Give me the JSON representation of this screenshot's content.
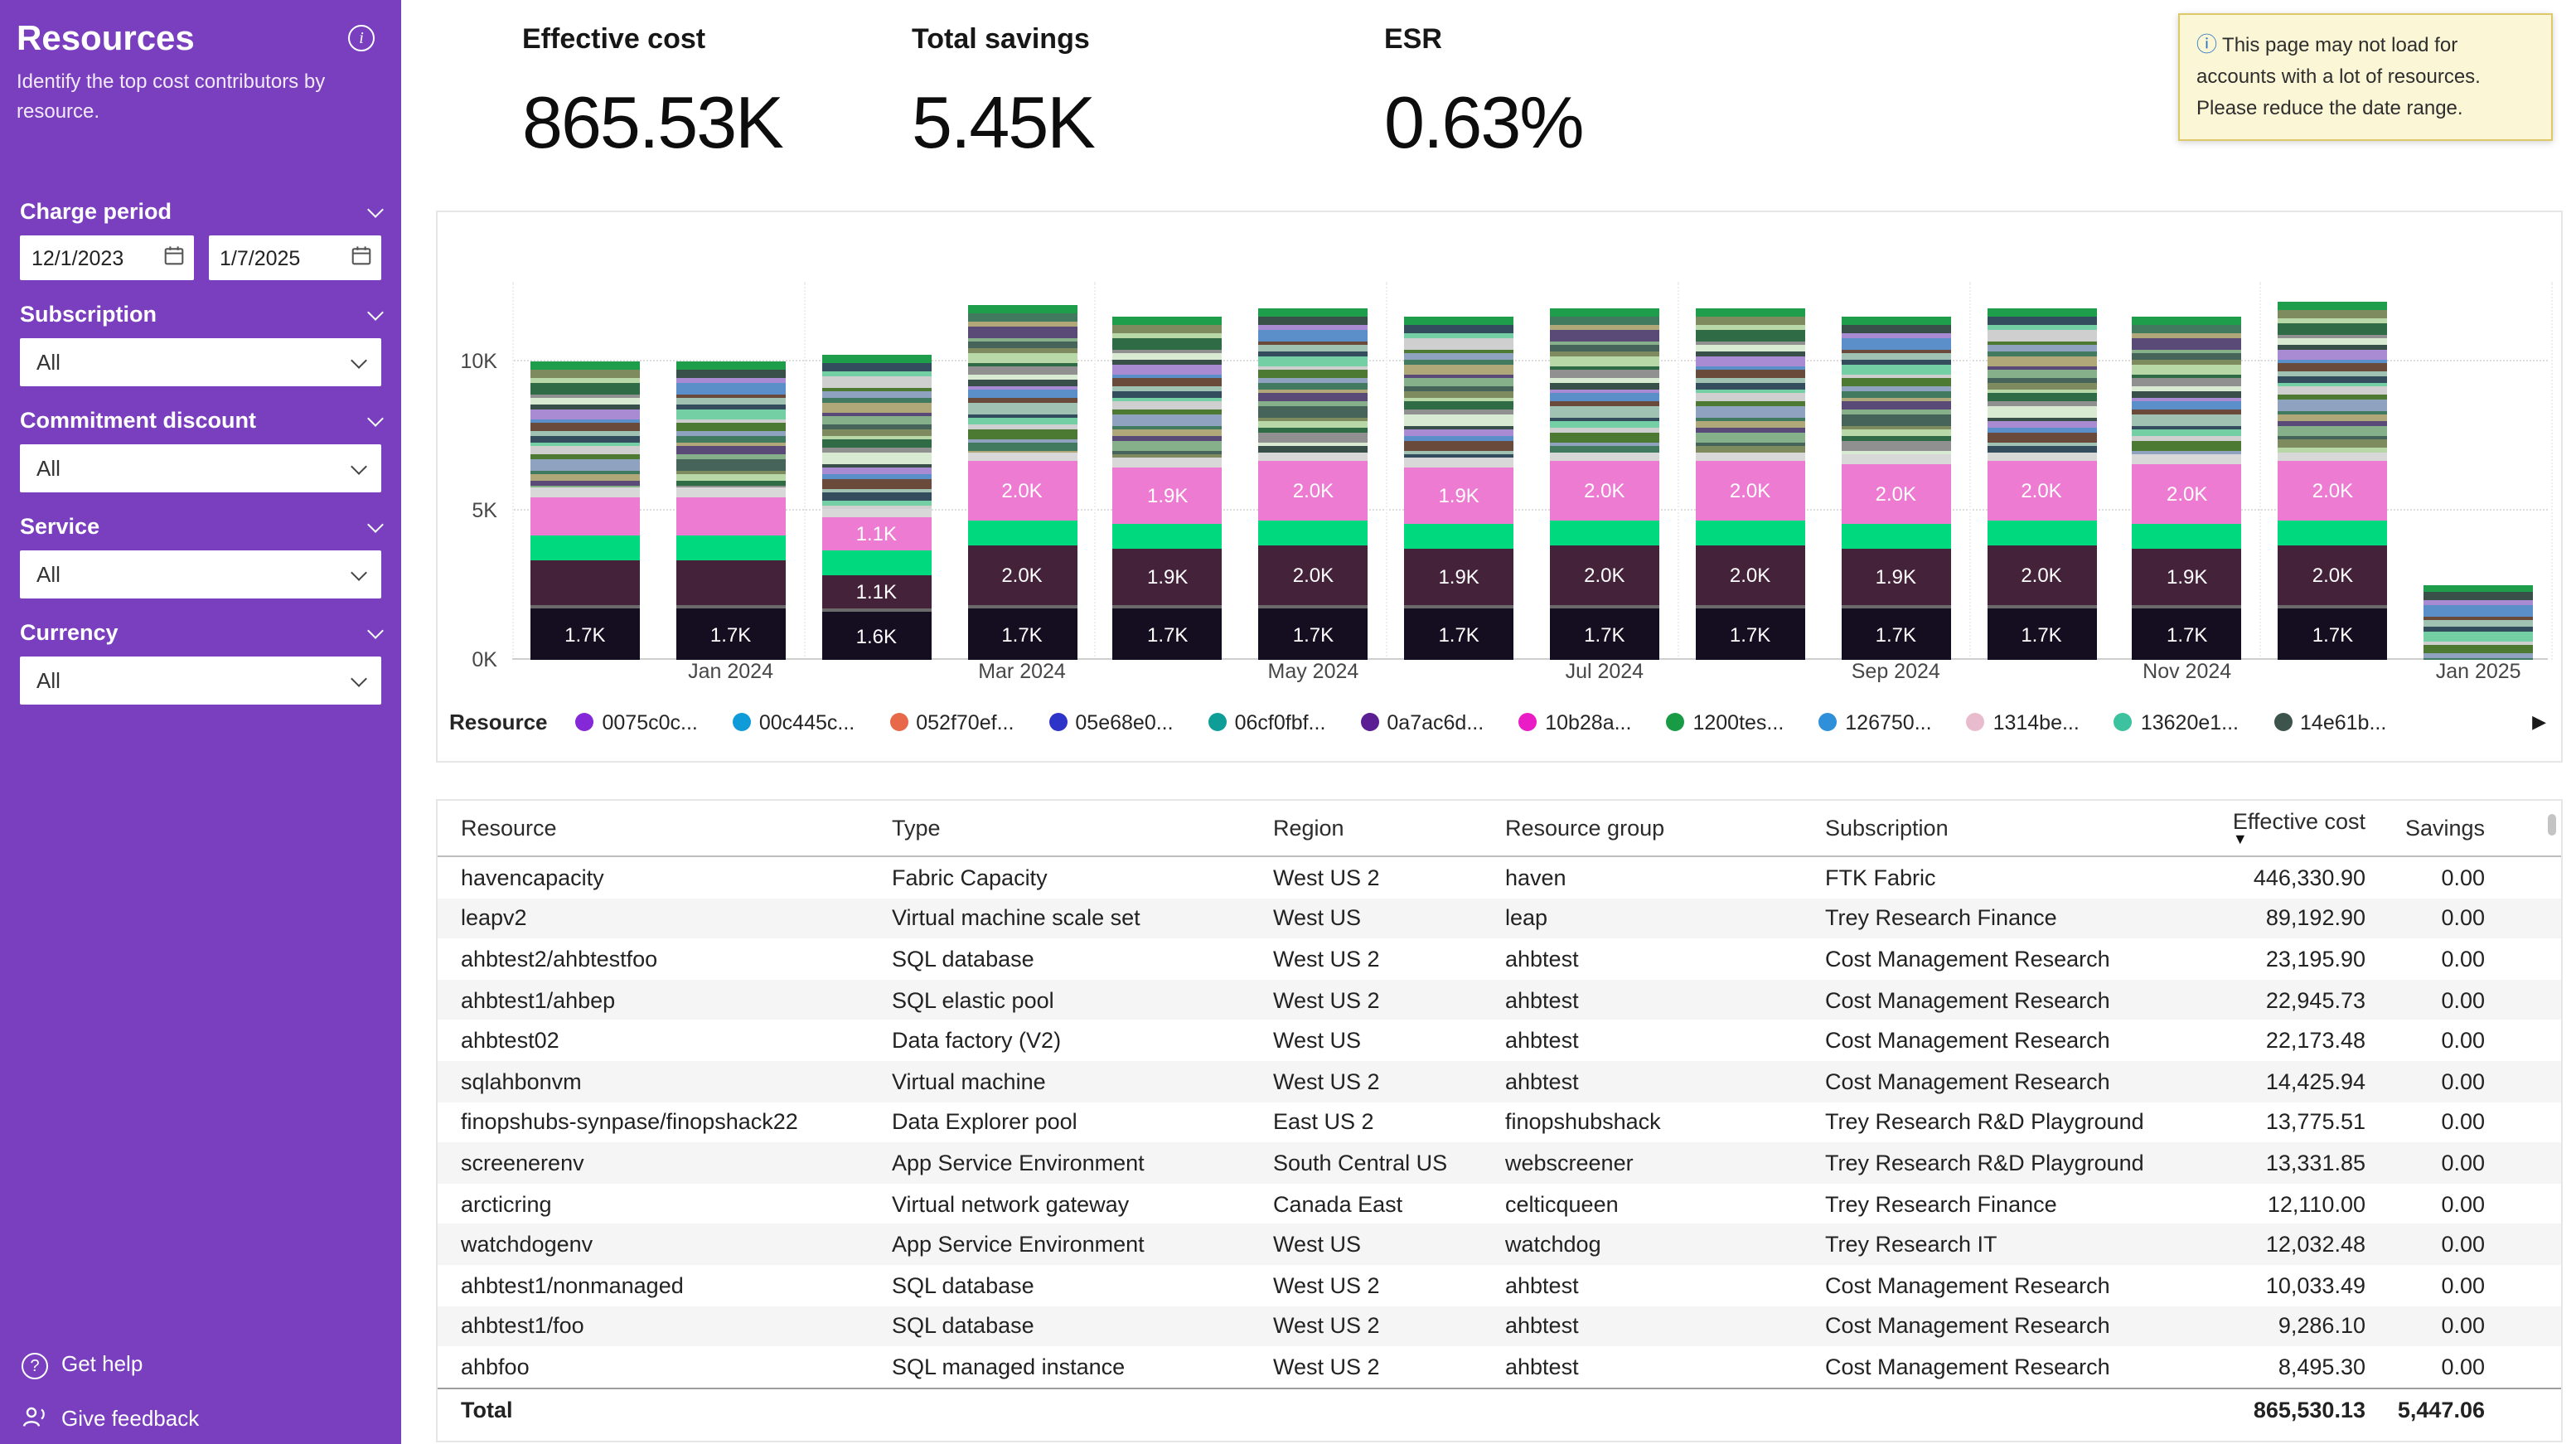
{
  "sidebar": {
    "title": "Resources",
    "subtitle": "Identify the top cost contributors by resource.",
    "filters": [
      {
        "label": "Charge period",
        "type": "dates",
        "values": [
          "12/1/2023",
          "1/7/2025"
        ]
      },
      {
        "label": "Subscription",
        "type": "select",
        "value": "All"
      },
      {
        "label": "Commitment discount",
        "type": "select",
        "value": "All"
      },
      {
        "label": "Service",
        "type": "select",
        "value": "All"
      },
      {
        "label": "Currency",
        "type": "select",
        "value": "All"
      }
    ],
    "footer": [
      {
        "label": "Get help"
      },
      {
        "label": "Give feedback"
      }
    ]
  },
  "kpis": [
    {
      "label": "Effective cost",
      "value": "865.53K"
    },
    {
      "label": "Total savings",
      "value": "5.45K"
    },
    {
      "label": "ESR",
      "value": "0.63%"
    }
  ],
  "warning": {
    "text": "This page may not load for accounts with a lot of resources. Please reduce the date range."
  },
  "chart_data": {
    "type": "bar",
    "stacked": true,
    "title": "",
    "xlabel": "",
    "ylabel": "",
    "ylim_k": [
      0,
      12.5
    ],
    "y_ticks": [
      "0K",
      "5K",
      "10K"
    ],
    "x_tick_labels": [
      "Jan 2024",
      "Mar 2024",
      "May 2024",
      "Jul 2024",
      "Sep 2024",
      "Nov 2024",
      "Jan 2025"
    ],
    "legend_label": "Resource",
    "legend_next": "▶",
    "legend_items": [
      {
        "name": "0075c0c...",
        "color": "#8428d8"
      },
      {
        "name": "00c445c...",
        "color": "#0f9bd8"
      },
      {
        "name": "052f70ef...",
        "color": "#e8684a"
      },
      {
        "name": "05e68e0...",
        "color": "#2f34c8"
      },
      {
        "name": "06cf0fbf...",
        "color": "#0e9e97"
      },
      {
        "name": "0a7ac6d...",
        "color": "#5c1f93"
      },
      {
        "name": "10b28a...",
        "color": "#ea1cc6"
      },
      {
        "name": "1200tes...",
        "color": "#199b45"
      },
      {
        "name": "126750...",
        "color": "#2f8fd8"
      },
      {
        "name": "1314be...",
        "color": "#e9bccd"
      },
      {
        "name": "13620e1...",
        "color": "#3cc29e"
      },
      {
        "name": "14e61b...",
        "color": "#3c544b"
      }
    ],
    "segment_colors": {
      "base": "#150d20",
      "sep": "#6a6a6a",
      "maroon": "#44223a",
      "green": "#00d97e",
      "pink": "#ee7bd2",
      "gray": "#d8d8d8",
      "cap": "#1e9e4a"
    },
    "stripe_palette": [
      "#7d8b5f",
      "#b9d8a8",
      "#2f6b45",
      "#909090",
      "#d9ead3",
      "#39504a",
      "#a98bd4",
      "#5b8fc9",
      "#6a4a3a",
      "#9fc2b2",
      "#334d5e",
      "#74cfa5",
      "#cfcfcf",
      "#4d7a33",
      "#8fa3c0",
      "#417a5f",
      "#b0a878",
      "#5a4a78",
      "#86b08a",
      "#47645a"
    ],
    "bars": [
      {
        "month": "Dec 2023",
        "total_k": 10.0,
        "segments": [
          {
            "c": "base",
            "v": 1.7,
            "t": "1.7K"
          },
          {
            "c": "sep",
            "v": 0.12
          },
          {
            "c": "maroon",
            "v": 1.5
          },
          {
            "c": "green",
            "v": 0.85
          },
          {
            "c": "pink",
            "v": 1.3
          },
          {
            "c": "gray",
            "v": 0.3
          },
          {
            "c": "stripes",
            "v": 3.95
          },
          {
            "c": "cap",
            "v": 0.28
          }
        ]
      },
      {
        "month": "Jan 2024",
        "total_k": 10.0,
        "segments": [
          {
            "c": "base",
            "v": 1.7,
            "t": "1.7K"
          },
          {
            "c": "sep",
            "v": 0.12
          },
          {
            "c": "maroon",
            "v": 1.5
          },
          {
            "c": "green",
            "v": 0.85
          },
          {
            "c": "pink",
            "v": 1.3
          },
          {
            "c": "gray",
            "v": 0.3
          },
          {
            "c": "stripes",
            "v": 3.95
          },
          {
            "c": "cap",
            "v": 0.28
          }
        ]
      },
      {
        "month": "Feb 2024",
        "total_k": 10.2,
        "segments": [
          {
            "c": "base",
            "v": 1.6,
            "t": "1.6K"
          },
          {
            "c": "sep",
            "v": 0.12
          },
          {
            "c": "maroon",
            "v": 1.1,
            "t": "1.1K"
          },
          {
            "c": "green",
            "v": 0.85
          },
          {
            "c": "pink",
            "v": 1.1,
            "t": "1.1K"
          },
          {
            "c": "gray",
            "v": 0.3
          },
          {
            "c": "stripes",
            "v": 4.85
          },
          {
            "c": "cap",
            "v": 0.28
          }
        ]
      },
      {
        "month": "Mar 2024",
        "total_k": 11.9,
        "segments": [
          {
            "c": "base",
            "v": 1.7,
            "t": "1.7K"
          },
          {
            "c": "sep",
            "v": 0.12
          },
          {
            "c": "maroon",
            "v": 2.0,
            "t": "2.0K"
          },
          {
            "c": "green",
            "v": 0.85
          },
          {
            "c": "pink",
            "v": 2.0,
            "t": "2.0K"
          },
          {
            "c": "gray",
            "v": 0.3
          },
          {
            "c": "stripes",
            "v": 4.65
          },
          {
            "c": "cap",
            "v": 0.28
          }
        ]
      },
      {
        "month": "Apr 2024",
        "total_k": 11.5,
        "segments": [
          {
            "c": "base",
            "v": 1.7,
            "t": "1.7K"
          },
          {
            "c": "sep",
            "v": 0.12
          },
          {
            "c": "maroon",
            "v": 1.9,
            "t": "1.9K"
          },
          {
            "c": "green",
            "v": 0.85
          },
          {
            "c": "pink",
            "v": 1.9,
            "t": "1.9K"
          },
          {
            "c": "gray",
            "v": 0.3
          },
          {
            "c": "stripes",
            "v": 4.45
          },
          {
            "c": "cap",
            "v": 0.28
          }
        ]
      },
      {
        "month": "May 2024",
        "total_k": 11.8,
        "segments": [
          {
            "c": "base",
            "v": 1.7,
            "t": "1.7K"
          },
          {
            "c": "sep",
            "v": 0.12
          },
          {
            "c": "maroon",
            "v": 2.0,
            "t": "2.0K"
          },
          {
            "c": "green",
            "v": 0.85
          },
          {
            "c": "pink",
            "v": 2.0,
            "t": "2.0K"
          },
          {
            "c": "gray",
            "v": 0.3
          },
          {
            "c": "stripes",
            "v": 4.55
          },
          {
            "c": "cap",
            "v": 0.28
          }
        ]
      },
      {
        "month": "Jun 2024",
        "total_k": 11.5,
        "segments": [
          {
            "c": "base",
            "v": 1.7,
            "t": "1.7K"
          },
          {
            "c": "sep",
            "v": 0.12
          },
          {
            "c": "maroon",
            "v": 1.9,
            "t": "1.9K"
          },
          {
            "c": "green",
            "v": 0.85
          },
          {
            "c": "pink",
            "v": 1.9,
            "t": "1.9K"
          },
          {
            "c": "gray",
            "v": 0.3
          },
          {
            "c": "stripes",
            "v": 4.45
          },
          {
            "c": "cap",
            "v": 0.28
          }
        ]
      },
      {
        "month": "Jul 2024",
        "total_k": 11.8,
        "segments": [
          {
            "c": "base",
            "v": 1.7,
            "t": "1.7K"
          },
          {
            "c": "sep",
            "v": 0.12
          },
          {
            "c": "maroon",
            "v": 2.0,
            "t": "2.0K"
          },
          {
            "c": "green",
            "v": 0.85
          },
          {
            "c": "pink",
            "v": 2.0,
            "t": "2.0K"
          },
          {
            "c": "gray",
            "v": 0.3
          },
          {
            "c": "stripes",
            "v": 4.55
          },
          {
            "c": "cap",
            "v": 0.28
          }
        ]
      },
      {
        "month": "Aug 2024",
        "total_k": 11.8,
        "segments": [
          {
            "c": "base",
            "v": 1.7,
            "t": "1.7K"
          },
          {
            "c": "sep",
            "v": 0.12
          },
          {
            "c": "maroon",
            "v": 2.0,
            "t": "2.0K"
          },
          {
            "c": "green",
            "v": 0.85
          },
          {
            "c": "pink",
            "v": 2.0,
            "t": "2.0K"
          },
          {
            "c": "gray",
            "v": 0.3
          },
          {
            "c": "stripes",
            "v": 4.55
          },
          {
            "c": "cap",
            "v": 0.28
          }
        ]
      },
      {
        "month": "Sep 2024",
        "total_k": 11.5,
        "segments": [
          {
            "c": "base",
            "v": 1.7,
            "t": "1.7K"
          },
          {
            "c": "sep",
            "v": 0.12
          },
          {
            "c": "maroon",
            "v": 1.9,
            "t": "1.9K"
          },
          {
            "c": "green",
            "v": 0.85
          },
          {
            "c": "pink",
            "v": 2.0,
            "t": "2.0K"
          },
          {
            "c": "gray",
            "v": 0.3
          },
          {
            "c": "stripes",
            "v": 4.35
          },
          {
            "c": "cap",
            "v": 0.28
          }
        ]
      },
      {
        "month": "Oct 2024",
        "total_k": 11.8,
        "segments": [
          {
            "c": "base",
            "v": 1.7,
            "t": "1.7K"
          },
          {
            "c": "sep",
            "v": 0.12
          },
          {
            "c": "maroon",
            "v": 2.0,
            "t": "2.0K"
          },
          {
            "c": "green",
            "v": 0.85
          },
          {
            "c": "pink",
            "v": 2.0,
            "t": "2.0K"
          },
          {
            "c": "gray",
            "v": 0.3
          },
          {
            "c": "stripes",
            "v": 4.55
          },
          {
            "c": "cap",
            "v": 0.28
          }
        ]
      },
      {
        "month": "Nov 2024",
        "total_k": 11.5,
        "segments": [
          {
            "c": "base",
            "v": 1.7,
            "t": "1.7K"
          },
          {
            "c": "sep",
            "v": 0.12
          },
          {
            "c": "maroon",
            "v": 1.9,
            "t": "1.9K"
          },
          {
            "c": "green",
            "v": 0.85
          },
          {
            "c": "pink",
            "v": 2.0,
            "t": "2.0K"
          },
          {
            "c": "gray",
            "v": 0.3
          },
          {
            "c": "stripes",
            "v": 4.35
          },
          {
            "c": "cap",
            "v": 0.28
          }
        ]
      },
      {
        "month": "Dec 2024",
        "total_k": 12.0,
        "segments": [
          {
            "c": "base",
            "v": 1.7,
            "t": "1.7K"
          },
          {
            "c": "sep",
            "v": 0.12
          },
          {
            "c": "maroon",
            "v": 2.0,
            "t": "2.0K"
          },
          {
            "c": "green",
            "v": 0.85
          },
          {
            "c": "pink",
            "v": 2.0,
            "t": "2.0K"
          },
          {
            "c": "gray",
            "v": 0.3
          },
          {
            "c": "stripes",
            "v": 4.75
          },
          {
            "c": "cap",
            "v": 0.28
          }
        ]
      },
      {
        "month": "Jan 2025",
        "total_k": 2.5,
        "segments": [
          {
            "c": "stripes",
            "v": 2.3
          },
          {
            "c": "cap",
            "v": 0.2
          }
        ]
      }
    ]
  },
  "table": {
    "columns": [
      {
        "label": "Resource"
      },
      {
        "label": "Type"
      },
      {
        "label": "Region"
      },
      {
        "label": "Resource group"
      },
      {
        "label": "Subscription"
      },
      {
        "label": "Effective cost",
        "align": "right",
        "sorted": "desc"
      },
      {
        "label": "Savings",
        "align": "right"
      }
    ],
    "rows": [
      [
        "havencapacity",
        "Fabric Capacity",
        "West US 2",
        "haven",
        "FTK Fabric",
        "446,330.90",
        "0.00"
      ],
      [
        "leapv2",
        "Virtual machine scale set",
        "West US",
        "leap",
        "Trey Research Finance",
        "89,192.90",
        "0.00"
      ],
      [
        "ahbtest2/ahbtestfoo",
        "SQL database",
        "West US 2",
        "ahbtest",
        "Cost Management Research",
        "23,195.90",
        "0.00"
      ],
      [
        "ahbtest1/ahbep",
        "SQL elastic pool",
        "West US 2",
        "ahbtest",
        "Cost Management Research",
        "22,945.73",
        "0.00"
      ],
      [
        "ahbtest02",
        "Data factory (V2)",
        "West US",
        "ahbtest",
        "Cost Management Research",
        "22,173.48",
        "0.00"
      ],
      [
        "sqlahbonvm",
        "Virtual machine",
        "West US 2",
        "ahbtest",
        "Cost Management Research",
        "14,425.94",
        "0.00"
      ],
      [
        "finopshubs-synpase/finopshack22",
        "Data Explorer pool",
        "East US 2",
        "finopshubshack",
        "Trey Research R&D Playground",
        "13,775.51",
        "0.00"
      ],
      [
        "screenerenv",
        "App Service Environment",
        "South Central US",
        "webscreener",
        "Trey Research R&D Playground",
        "13,331.85",
        "0.00"
      ],
      [
        "arcticring",
        "Virtual network gateway",
        "Canada East",
        "celticqueen",
        "Trey Research Finance",
        "12,110.00",
        "0.00"
      ],
      [
        "watchdogenv",
        "App Service Environment",
        "West US",
        "watchdog",
        "Trey Research IT",
        "12,032.48",
        "0.00"
      ],
      [
        "ahbtest1/nonmanaged",
        "SQL database",
        "West US 2",
        "ahbtest",
        "Cost Management Research",
        "10,033.49",
        "0.00"
      ],
      [
        "ahbtest1/foo",
        "SQL database",
        "West US 2",
        "ahbtest",
        "Cost Management Research",
        "9,286.10",
        "0.00"
      ],
      [
        "ahbfoo",
        "SQL managed instance",
        "West US 2",
        "ahbtest",
        "Cost Management Research",
        "8,495.30",
        "0.00"
      ]
    ],
    "total": {
      "label": "Total",
      "effective_cost": "865,530.13",
      "savings": "5,447.06"
    }
  }
}
